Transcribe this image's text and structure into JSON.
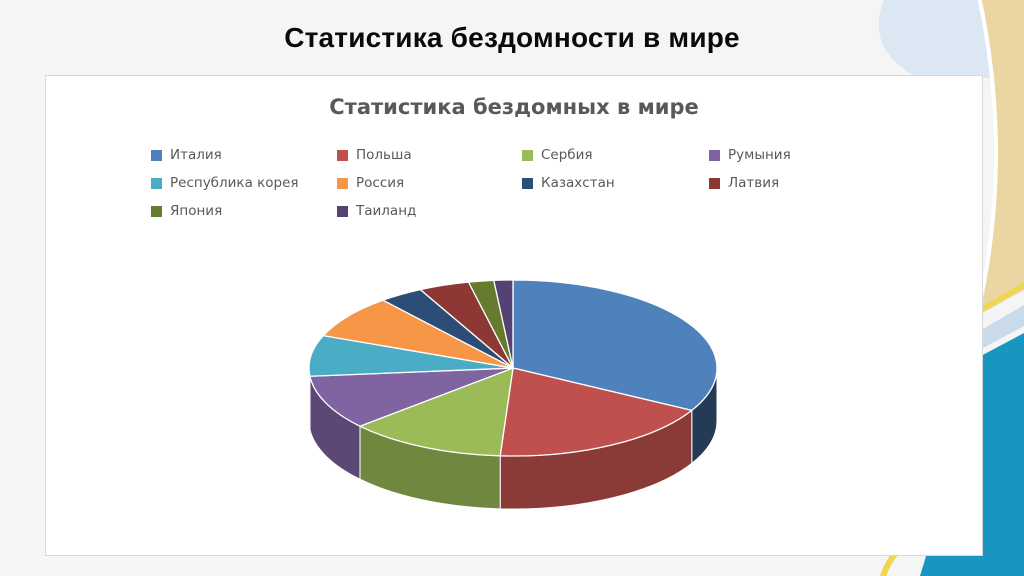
{
  "slide": {
    "title": "Статистика бездомности в мире"
  },
  "chart_data": {
    "type": "pie",
    "variant": "3d",
    "title": "Статистика бездомных в мире",
    "legend_position": "top",
    "legend_columns": 4,
    "data_labels_shown": false,
    "units_note": "percent share estimated from slice angles (no value labels visible)",
    "start_angle_deg": 0,
    "direction": "clockwise",
    "series": [
      {
        "name": "Италия",
        "value": 33,
        "color": "#4F81BD"
      },
      {
        "name": "Польша",
        "value": 18,
        "color": "#C0504D"
      },
      {
        "name": "Сербия",
        "value": 12.5,
        "color": "#9BBB59"
      },
      {
        "name": "Румыния",
        "value": 10,
        "color": "#8064A2"
      },
      {
        "name": "Республика корея",
        "value": 7.5,
        "color": "#4BACC6"
      },
      {
        "name": "Россия",
        "value": 8,
        "color": "#F79646"
      },
      {
        "name": "Казахстан",
        "value": 3.5,
        "color": "#2C4D75"
      },
      {
        "name": "Латвия",
        "value": 4,
        "color": "#8D3835"
      },
      {
        "name": "Япония",
        "value": 2,
        "color": "#667B2E"
      },
      {
        "name": "Таиланд",
        "value": 1.5,
        "color": "#534272"
      }
    ]
  },
  "theme": {
    "slide_background": "#F5F5F5",
    "panel_background": "#FFFFFF",
    "panel_border": "#D8D8D8",
    "title_color": "#0A0A0A",
    "chart_title_color": "#595959",
    "legend_text_color": "#595959",
    "decor_light_blue": "#D6E5F3",
    "decor_tan": "#EBD5A3",
    "decor_yellow": "#F0D54E",
    "decor_band_blue": "#C9DBEA",
    "decor_teal": "#1896C1"
  }
}
